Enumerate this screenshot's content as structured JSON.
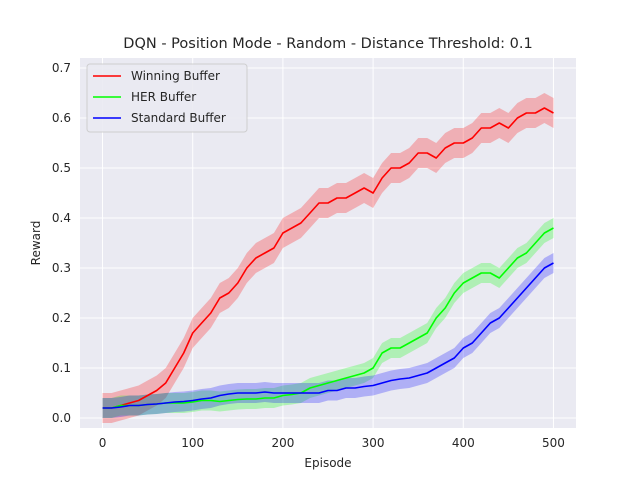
{
  "chart_data": {
    "type": "line",
    "title": "DQN - Position Mode - Random - Distance Threshold: 0.1",
    "xlabel": "Episode",
    "ylabel": "Reward",
    "xlim": [
      -25,
      525
    ],
    "ylim": [
      -0.02,
      0.72
    ],
    "xticks": [
      0,
      100,
      200,
      300,
      400,
      500
    ],
    "yticks": [
      0.0,
      0.1,
      0.2,
      0.3,
      0.4,
      0.5,
      0.6,
      0.7
    ],
    "xtick_labels": [
      "0",
      "100",
      "200",
      "300",
      "400",
      "500"
    ],
    "ytick_labels": [
      "0.0",
      "0.1",
      "0.2",
      "0.3",
      "0.4",
      "0.5",
      "0.6",
      "0.7"
    ],
    "grid": true,
    "legend_position": "top-left",
    "style": {
      "background": "#eaeaf2",
      "grid_color": "#ffffff"
    },
    "series": [
      {
        "name": "Winning Buffer",
        "color": "#ff0000",
        "x": [
          0,
          10,
          20,
          30,
          40,
          50,
          60,
          70,
          80,
          90,
          100,
          110,
          120,
          130,
          140,
          150,
          160,
          170,
          180,
          190,
          200,
          210,
          220,
          230,
          240,
          250,
          260,
          270,
          280,
          290,
          300,
          310,
          320,
          330,
          340,
          350,
          360,
          370,
          380,
          390,
          400,
          410,
          420,
          430,
          440,
          450,
          460,
          470,
          480,
          490,
          500
        ],
        "values": [
          0.02,
          0.02,
          0.025,
          0.03,
          0.035,
          0.045,
          0.055,
          0.07,
          0.1,
          0.13,
          0.17,
          0.19,
          0.21,
          0.24,
          0.25,
          0.27,
          0.3,
          0.32,
          0.33,
          0.34,
          0.37,
          0.38,
          0.39,
          0.41,
          0.43,
          0.43,
          0.44,
          0.44,
          0.45,
          0.46,
          0.45,
          0.48,
          0.5,
          0.5,
          0.51,
          0.53,
          0.53,
          0.52,
          0.54,
          0.55,
          0.55,
          0.56,
          0.58,
          0.58,
          0.59,
          0.58,
          0.6,
          0.61,
          0.61,
          0.62,
          0.61
        ],
        "band": 0.03
      },
      {
        "name": "HER Buffer",
        "color": "#00ff00",
        "x": [
          0,
          10,
          20,
          30,
          40,
          50,
          60,
          70,
          80,
          90,
          100,
          110,
          120,
          130,
          140,
          150,
          160,
          170,
          180,
          190,
          200,
          210,
          220,
          230,
          240,
          250,
          260,
          270,
          280,
          290,
          300,
          310,
          320,
          330,
          340,
          350,
          360,
          370,
          380,
          390,
          400,
          410,
          420,
          430,
          440,
          450,
          460,
          470,
          480,
          490,
          500
        ],
        "values": [
          0.02,
          0.02,
          0.025,
          0.025,
          0.025,
          0.027,
          0.028,
          0.03,
          0.03,
          0.03,
          0.032,
          0.035,
          0.035,
          0.033,
          0.035,
          0.037,
          0.038,
          0.038,
          0.04,
          0.04,
          0.045,
          0.047,
          0.05,
          0.06,
          0.065,
          0.07,
          0.075,
          0.08,
          0.085,
          0.09,
          0.1,
          0.13,
          0.14,
          0.14,
          0.15,
          0.16,
          0.17,
          0.2,
          0.22,
          0.25,
          0.27,
          0.28,
          0.29,
          0.29,
          0.28,
          0.3,
          0.32,
          0.33,
          0.35,
          0.37,
          0.38
        ],
        "band": 0.02
      },
      {
        "name": "Standard Buffer",
        "color": "#0000ff",
        "x": [
          0,
          10,
          20,
          30,
          40,
          50,
          60,
          70,
          80,
          90,
          100,
          110,
          120,
          130,
          140,
          150,
          160,
          170,
          180,
          190,
          200,
          210,
          220,
          230,
          240,
          250,
          260,
          270,
          280,
          290,
          300,
          310,
          320,
          330,
          340,
          350,
          360,
          370,
          380,
          390,
          400,
          410,
          420,
          430,
          440,
          450,
          460,
          470,
          480,
          490,
          500
        ],
        "values": [
          0.02,
          0.02,
          0.022,
          0.025,
          0.025,
          0.027,
          0.028,
          0.03,
          0.032,
          0.033,
          0.035,
          0.038,
          0.04,
          0.045,
          0.048,
          0.05,
          0.05,
          0.05,
          0.052,
          0.05,
          0.05,
          0.05,
          0.05,
          0.05,
          0.05,
          0.055,
          0.055,
          0.06,
          0.06,
          0.063,
          0.065,
          0.07,
          0.075,
          0.078,
          0.08,
          0.085,
          0.09,
          0.1,
          0.11,
          0.12,
          0.14,
          0.15,
          0.17,
          0.19,
          0.2,
          0.22,
          0.24,
          0.26,
          0.28,
          0.3,
          0.31
        ],
        "band": 0.02
      }
    ]
  }
}
